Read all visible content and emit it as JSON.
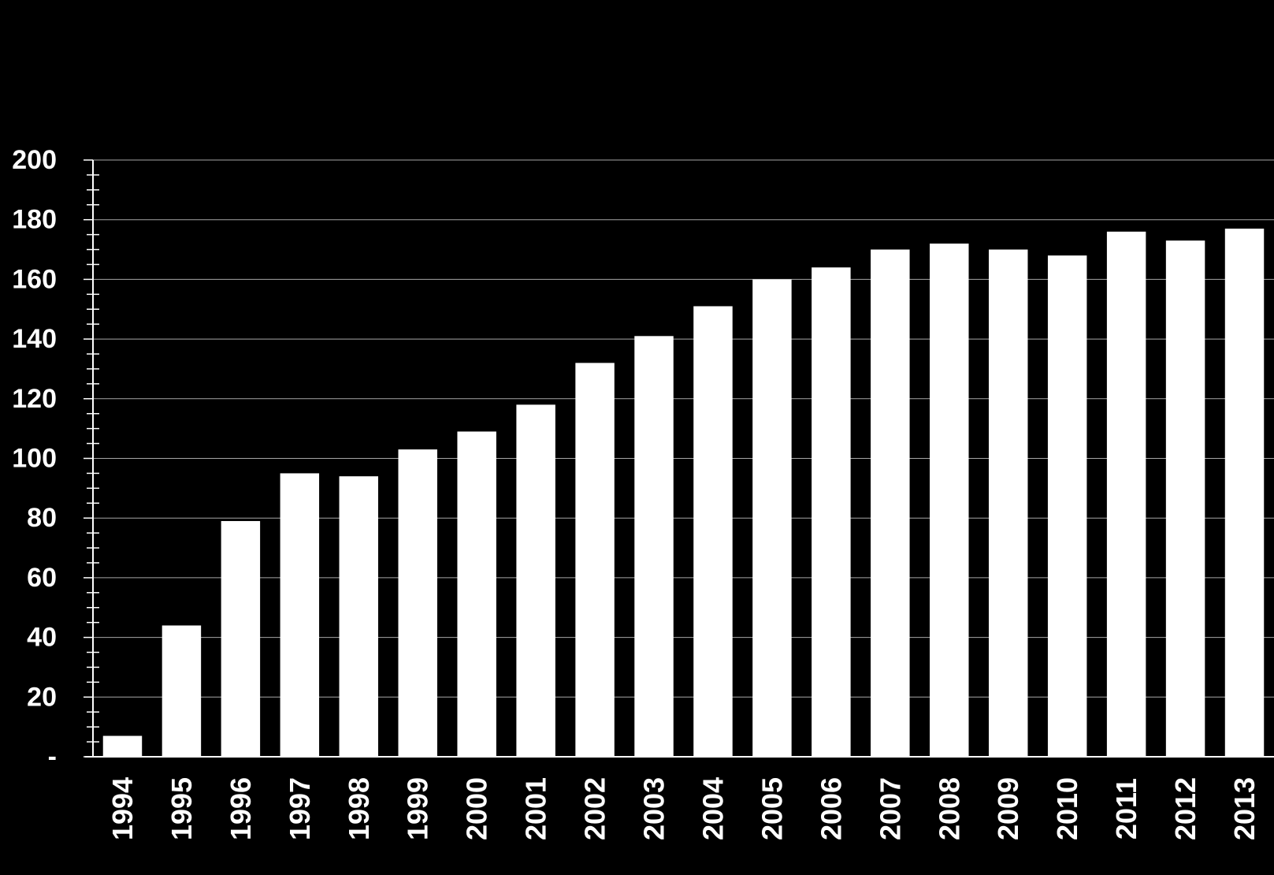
{
  "chart_data": {
    "type": "bar",
    "title": "",
    "xlabel": "",
    "ylabel": "",
    "categories": [
      "1994",
      "1995",
      "1996",
      "1997",
      "1998",
      "1999",
      "2000",
      "2001",
      "2002",
      "2003",
      "2004",
      "2005",
      "2006",
      "2007",
      "2008",
      "2009",
      "2010",
      "2011",
      "2012",
      "2013"
    ],
    "values": [
      7,
      44,
      79,
      95,
      94,
      103,
      109,
      118,
      132,
      141,
      151,
      160,
      164,
      170,
      172,
      170,
      168,
      176,
      173,
      177
    ],
    "ylim": [
      0,
      200
    ],
    "yticks": [
      0,
      20,
      40,
      60,
      80,
      100,
      120,
      140,
      160,
      180,
      200
    ],
    "ytick_labels": [
      "-",
      "20",
      "40",
      "60",
      "80",
      "100",
      "120",
      "140",
      "160",
      "180",
      "200"
    ],
    "minor_tick_step": 5,
    "grid": true,
    "legend": "none",
    "colors": {
      "background": "#000000",
      "bar": "#ffffff",
      "gridline": "#a6a6a6",
      "axis": "#ffffff",
      "text": "#ffffff"
    }
  }
}
